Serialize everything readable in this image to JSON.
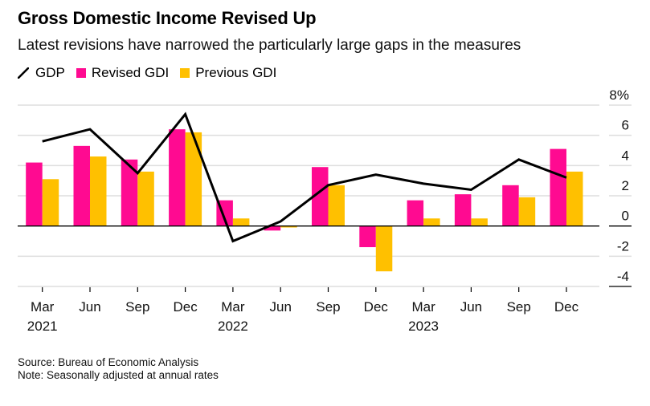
{
  "header": {
    "title": "Gross Domestic Income Revised Up",
    "subtitle": "Latest revisions have narrowed the particularly large gaps in the measures"
  },
  "legend": [
    {
      "name": "GDP",
      "kind": "line",
      "color": "#000000"
    },
    {
      "name": "Revised GDI",
      "kind": "bar",
      "color": "#ff0a91"
    },
    {
      "name": "Previous GDI",
      "kind": "bar",
      "color": "#ffc000"
    }
  ],
  "footer": {
    "source": "Source: Bureau of Economic Analysis",
    "note": "Note: Seasonally adjusted at annual rates"
  },
  "chart_data": {
    "type": "bar",
    "title": "Gross Domestic Income Revised Up",
    "subtitle": "Latest revisions have narrowed the particularly large gaps in the measures",
    "xlabel": "",
    "ylabel": "",
    "categories": [
      "Mar",
      "Jun",
      "Sep",
      "Dec",
      "Mar",
      "Jun",
      "Sep",
      "Dec",
      "Mar",
      "Jun",
      "Sep",
      "Dec"
    ],
    "year_labels": {
      "0": "2021",
      "4": "2022",
      "8": "2023"
    },
    "series": [
      {
        "name": "Revised GDI",
        "type": "bar",
        "color": "#ff0a91",
        "values": [
          4.2,
          5.3,
          4.4,
          6.4,
          1.7,
          -0.3,
          3.9,
          -1.4,
          1.7,
          2.1,
          2.7,
          5.1
        ]
      },
      {
        "name": "Previous GDI",
        "type": "bar",
        "color": "#ffc000",
        "values": [
          3.1,
          4.6,
          3.6,
          6.2,
          0.5,
          -0.1,
          2.7,
          -3.0,
          0.5,
          0.5,
          1.9,
          3.6
        ]
      },
      {
        "name": "GDP",
        "type": "line",
        "color": "#000000",
        "values": [
          5.6,
          6.4,
          3.5,
          7.4,
          -1.0,
          0.3,
          2.7,
          3.4,
          2.8,
          2.4,
          4.4,
          3.2
        ]
      }
    ],
    "ylim": [
      -4,
      8
    ],
    "yticks": [
      8,
      6,
      4,
      2,
      0,
      -2,
      -4
    ],
    "ytick_labels": [
      "8%",
      "6",
      "4",
      "2",
      "0",
      "-2",
      "-4"
    ],
    "y_axis_side": "right",
    "grid": true,
    "legend_position": "top-left"
  }
}
